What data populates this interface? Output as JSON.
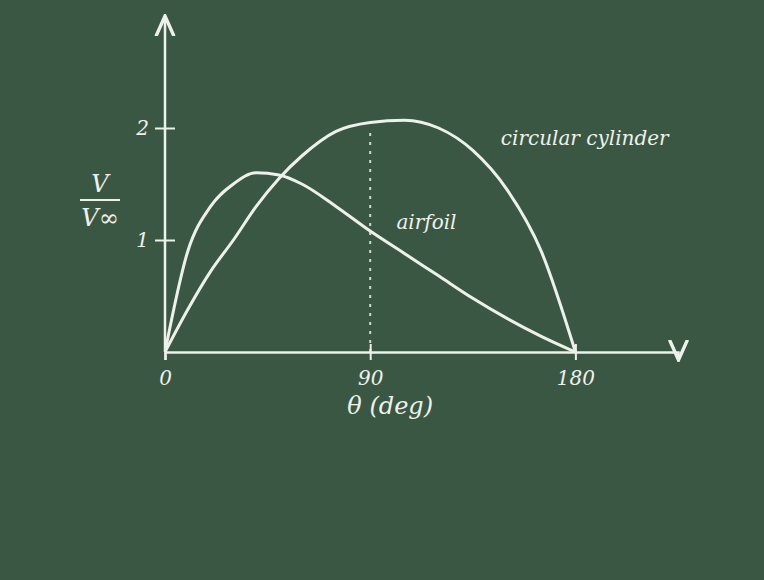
{
  "chart_data": {
    "type": "line",
    "ylabel": [
      "V",
      "V∞"
    ],
    "xlabel": "θ (deg)",
    "x": [
      0,
      10,
      20,
      30,
      40,
      50,
      60,
      75,
      90,
      105,
      120,
      135,
      150,
      165,
      180
    ],
    "series": [
      {
        "name": "circular cylinder",
        "color": "#eef1ea",
        "values": [
          0,
          0.38,
          0.72,
          1.0,
          1.3,
          1.55,
          1.75,
          1.97,
          2.05,
          2.07,
          2.0,
          1.8,
          1.45,
          0.9,
          0
        ]
      },
      {
        "name": "airfoil",
        "color": "#eef1ea",
        "values": [
          0,
          0.9,
          1.3,
          1.5,
          1.6,
          1.58,
          1.5,
          1.3,
          1.08,
          0.88,
          0.68,
          0.48,
          0.3,
          0.14,
          0
        ]
      }
    ],
    "reference_lines": [
      {
        "x": 90,
        "y": 2
      }
    ],
    "xlim": [
      0,
      225
    ],
    "xticks": [
      0,
      90,
      180
    ],
    "ylim": [
      0,
      3
    ],
    "yticks": [
      1,
      2
    ],
    "grid": false
  }
}
